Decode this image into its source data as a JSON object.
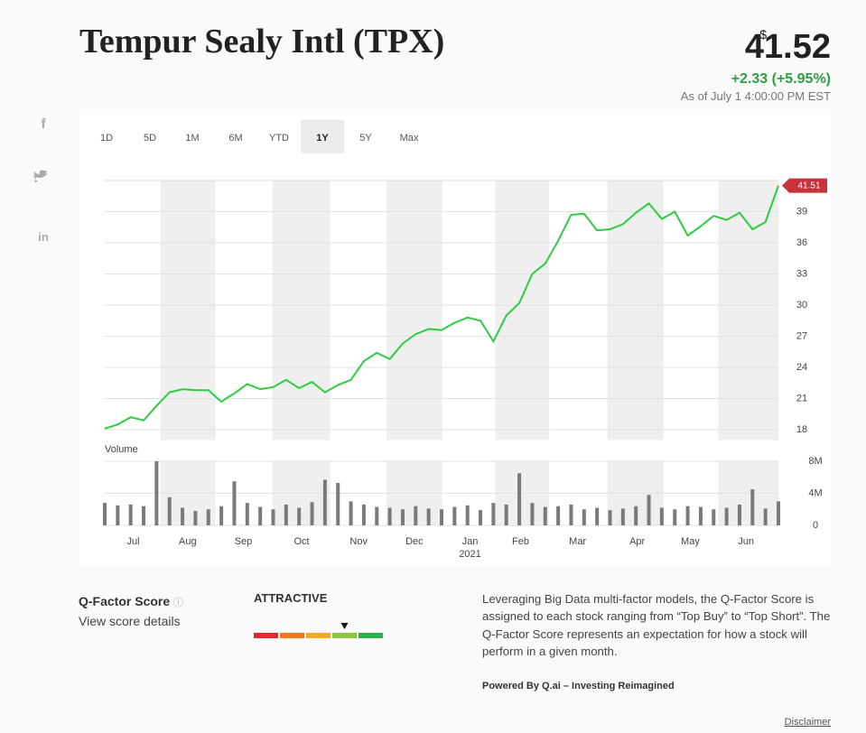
{
  "header": {
    "title": "Tempur Sealy Intl (TPX)",
    "currency": "$",
    "price": "41.52",
    "change": "+2.33 (+5.95%)",
    "as_of": "As of July 1 4:00:00 PM EST"
  },
  "social": [
    "f",
    "in"
  ],
  "ranges": [
    "1D",
    "5D",
    "1M",
    "6M",
    "YTD",
    "1Y",
    "5Y",
    "Max"
  ],
  "selected_range_index": 5,
  "chart_data": [
    {
      "type": "line",
      "color": "#2ecc40",
      "values": [
        18.1,
        18.5,
        19.2,
        18.9,
        20.3,
        21.6,
        21.9,
        21.8,
        21.8,
        20.7,
        21.5,
        22.4,
        21.9,
        22.1,
        22.8,
        22.0,
        22.6,
        21.6,
        22.3,
        22.8,
        24.6,
        25.4,
        24.8,
        26.3,
        27.2,
        27.7,
        27.6,
        28.3,
        28.8,
        28.5,
        26.5,
        29.0,
        30.2,
        33.0,
        34.0,
        36.2,
        38.7,
        38.8,
        37.2,
        37.3,
        37.8,
        38.9,
        39.8,
        38.3,
        39.0,
        36.7,
        37.6,
        38.6,
        38.2,
        38.9,
        37.3,
        38.0,
        41.51
      ],
      "last_value_color": "#c8323c",
      "ylim": [
        17,
        42
      ],
      "yticks": [
        18,
        21,
        24,
        27,
        30,
        33,
        36,
        39
      ],
      "xlim": [
        0,
        52
      ],
      "xticks": [
        {
          "value": 2.2,
          "label": "Jul"
        },
        {
          "value": 6.4,
          "label": "Aug"
        },
        {
          "value": 10.7,
          "label": "Sep"
        },
        {
          "value": 15.2,
          "label": "Oct"
        },
        {
          "value": 19.6,
          "label": "Nov"
        },
        {
          "value": 23.9,
          "label": "Dec"
        },
        {
          "value": 28.2,
          "label": "Jan",
          "year": "2021"
        },
        {
          "value": 32.1,
          "label": "Feb"
        },
        {
          "value": 36.5,
          "label": "Mar"
        },
        {
          "value": 41.1,
          "label": "Apr"
        },
        {
          "value": 45.2,
          "label": "May"
        },
        {
          "value": 49.5,
          "label": "Jun"
        }
      ],
      "grid": true
    },
    {
      "type": "bar",
      "title": "Volume",
      "color": "#7a7a7a",
      "values": [
        2.8,
        2.5,
        2.6,
        2.4,
        8.0,
        3.5,
        2.2,
        1.8,
        2.0,
        2.4,
        5.5,
        2.8,
        2.3,
        2.0,
        2.6,
        2.2,
        2.9,
        5.7,
        5.3,
        3.0,
        2.6,
        2.3,
        2.2,
        2.0,
        2.4,
        2.1,
        2.0,
        2.3,
        2.5,
        1.9,
        2.8,
        2.6,
        6.5,
        2.8,
        2.3,
        2.4,
        2.6,
        2.0,
        2.2,
        1.9,
        2.1,
        2.4,
        3.8,
        2.2,
        2.0,
        2.4,
        2.3,
        2.0,
        2.2,
        2.6,
        4.5,
        2.1,
        3.0
      ],
      "ylim": [
        0,
        8
      ],
      "yticks": [
        0,
        {
          "value": 4,
          "label": "4M"
        },
        {
          "value": 8,
          "label": "8M"
        }
      ]
    }
  ],
  "qfactor": {
    "label": "Q-Factor Score",
    "info": "ⓘ",
    "link": "View score details",
    "rating": "ATTRACTIVE",
    "gauge_colors": [
      "#e8262c",
      "#f47a20",
      "#f7a823",
      "#8cc63f",
      "#2db34a"
    ],
    "gauge_index": 3,
    "description": "Leveraging Big Data multi-factor models, the Q-Factor Score is assigned to each stock ranging from “Top Buy” to “Top Short”. The Q-Factor Score represents an expectation for how a stock will perform in a given month.",
    "powered_by": "Powered By Q.ai – Investing Reimagined",
    "disclaimer": "Disclaimer"
  }
}
